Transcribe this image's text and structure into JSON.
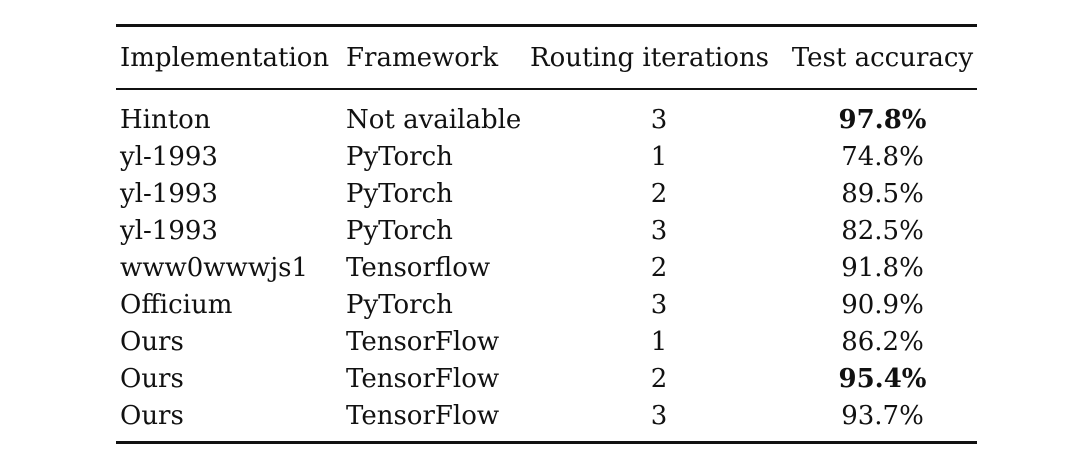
{
  "table": {
    "headers": [
      "Implementation",
      "Framework",
      "Routing iterations",
      "Test accuracy"
    ],
    "rows": [
      {
        "implementation": "Hinton",
        "framework": "Not available",
        "iterations": "3",
        "accuracy": "97.8%",
        "bold": true
      },
      {
        "implementation": "yl-1993",
        "framework": "PyTorch",
        "iterations": "1",
        "accuracy": "74.8%",
        "bold": false
      },
      {
        "implementation": "yl-1993",
        "framework": "PyTorch",
        "iterations": "2",
        "accuracy": "89.5%",
        "bold": false
      },
      {
        "implementation": "yl-1993",
        "framework": "PyTorch",
        "iterations": "3",
        "accuracy": "82.5%",
        "bold": false
      },
      {
        "implementation": "www0wwwjs1",
        "framework": "Tensorflow",
        "iterations": "2",
        "accuracy": "91.8%",
        "bold": false
      },
      {
        "implementation": "Officium",
        "framework": "PyTorch",
        "iterations": "3",
        "accuracy": "90.9%",
        "bold": false
      },
      {
        "implementation": "Ours",
        "framework": "TensorFlow",
        "iterations": "1",
        "accuracy": "86.2%",
        "bold": false
      },
      {
        "implementation": "Ours",
        "framework": "TensorFlow",
        "iterations": "2",
        "accuracy": "95.4%",
        "bold": true
      },
      {
        "implementation": "Ours",
        "framework": "TensorFlow",
        "iterations": "3",
        "accuracy": "93.7%",
        "bold": false
      }
    ]
  }
}
